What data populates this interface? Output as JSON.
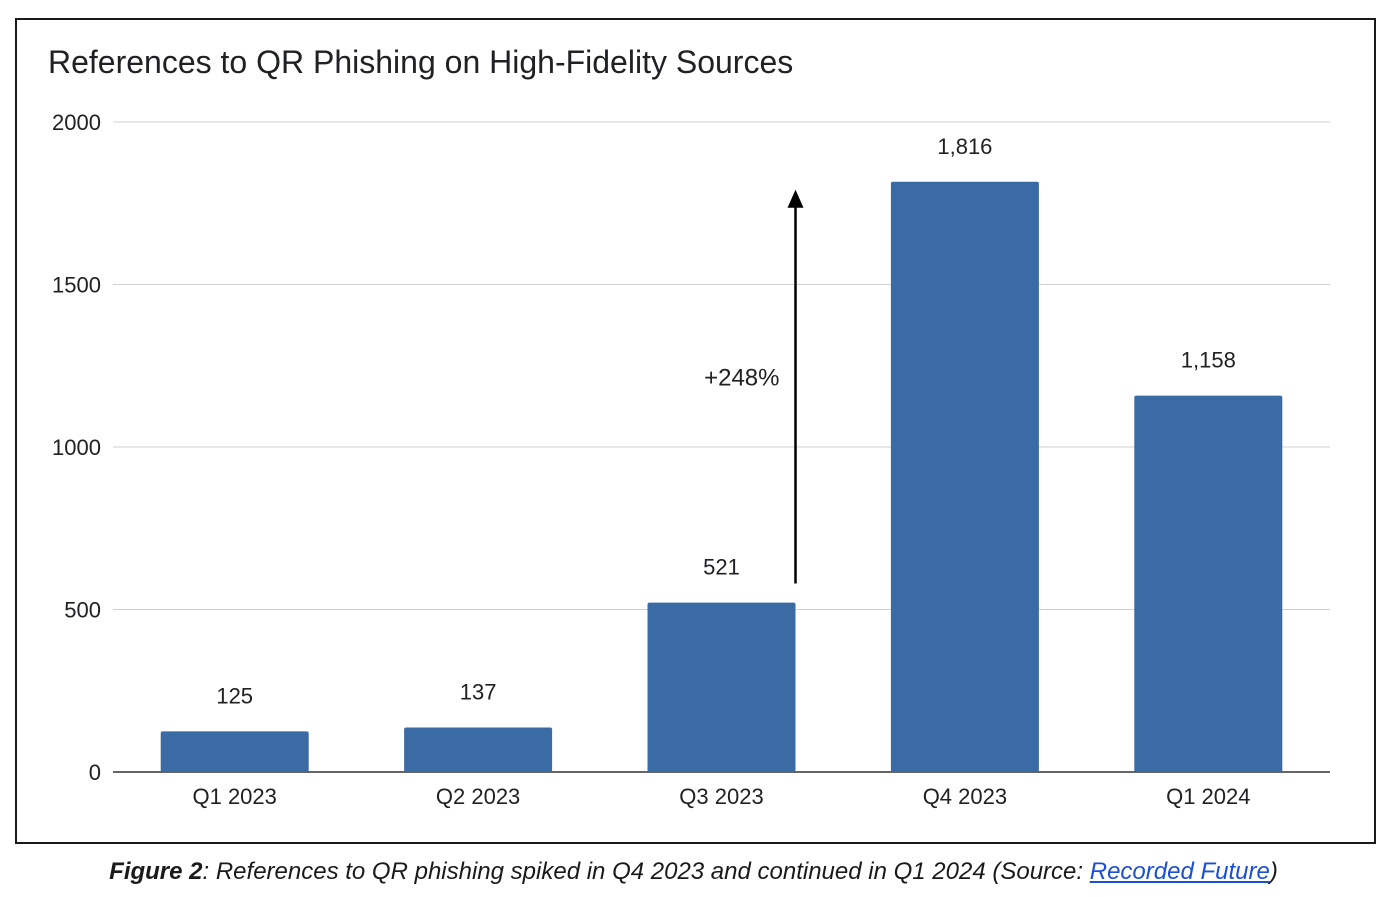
{
  "chart_data": {
    "type": "bar",
    "title": "References to QR Phishing on High-Fidelity Sources",
    "categories": [
      "Q1 2023",
      "Q2 2023",
      "Q3 2023",
      "Q4 2023",
      "Q1 2024"
    ],
    "values": [
      125,
      137,
      521,
      1816,
      1158
    ],
    "value_labels": [
      "125",
      "137",
      "521",
      "1,816",
      "1,158"
    ],
    "y_ticks": [
      "0",
      "500",
      "1000",
      "1500",
      "2000"
    ],
    "ylim": [
      0,
      2000
    ],
    "xlabel": "",
    "ylabel": "",
    "grid": true,
    "legend": "none",
    "bar_color": "#3b6ba5",
    "annotation": {
      "text": "+248%",
      "type": "arrow",
      "from_value": 580,
      "to_value": 1816,
      "between_categories": [
        "Q3 2023",
        "Q4 2023"
      ]
    }
  },
  "caption": {
    "label": "Figure 2",
    "text": ": References to QR phishing spiked in Q4 2023 and continued in Q1 2024 (Source: ",
    "link_text": "Recorded Future",
    "close": ")"
  },
  "colors": {
    "gridline": "#d0d0d0",
    "axis": "#333333",
    "text": "#202124",
    "link": "#1a4fd6"
  }
}
